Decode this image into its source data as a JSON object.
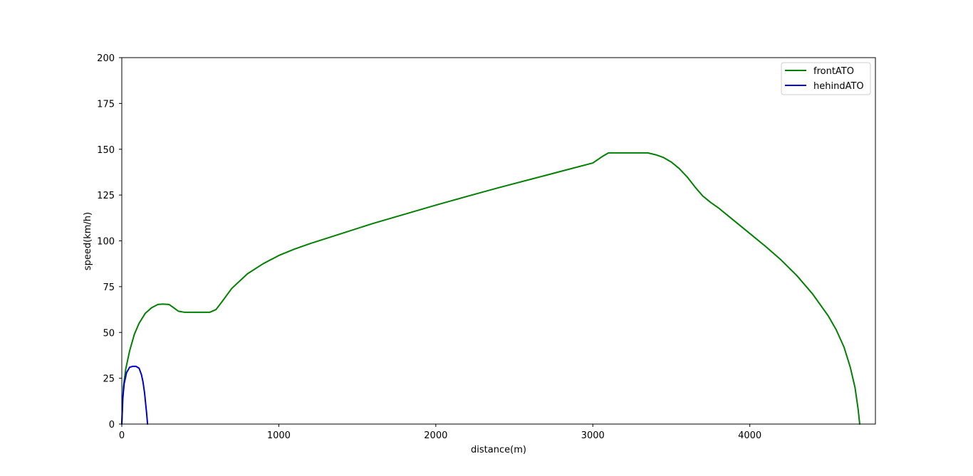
{
  "chart_data": {
    "type": "line",
    "title": "",
    "xlabel": "distance(m)",
    "ylabel": "speed(km/h)",
    "xlim": [
      0,
      4800
    ],
    "ylim": [
      0,
      200
    ],
    "xticks": [
      0,
      1000,
      2000,
      3000,
      4000
    ],
    "yticks": [
      0,
      25,
      50,
      75,
      100,
      125,
      150,
      175,
      200
    ],
    "grid": false,
    "legend_position": "top-right",
    "series": [
      {
        "name": "frontATO",
        "color": "#008000",
        "x": [
          0,
          10,
          25,
          50,
          80,
          110,
          150,
          190,
          230,
          260,
          300,
          330,
          360,
          400,
          450,
          500,
          560,
          600,
          640,
          700,
          800,
          900,
          1000,
          1100,
          1200,
          1400,
          1600,
          1800,
          2000,
          2200,
          2400,
          2600,
          2800,
          3000,
          3060,
          3100,
          3200,
          3300,
          3350,
          3400,
          3450,
          3500,
          3550,
          3600,
          3650,
          3700,
          3750,
          3800,
          3900,
          4000,
          4100,
          4200,
          4300,
          4400,
          4500,
          4550,
          4600,
          4640,
          4670,
          4690,
          4700
        ],
        "y": [
          0,
          20,
          30,
          40,
          49,
          55,
          60.5,
          63.5,
          65.3,
          65.5,
          65.3,
          63.5,
          61.6,
          61,
          61,
          61,
          61,
          62.5,
          67,
          74,
          82,
          87.5,
          92,
          95.5,
          98.5,
          104,
          109.5,
          114.5,
          119.5,
          124.3,
          129,
          133.5,
          138,
          142.5,
          146,
          148,
          148,
          148,
          148,
          147,
          145.5,
          143,
          139.5,
          135,
          129.5,
          124.5,
          121,
          118,
          111,
          104,
          97,
          89.5,
          81,
          71,
          59,
          51.5,
          42,
          31,
          20,
          8,
          0
        ]
      },
      {
        "name": "hehindATO",
        "color": "#0000cc",
        "x": [
          0,
          5,
          15,
          30,
          50,
          70,
          90,
          110,
          125,
          135,
          145,
          152,
          158,
          162,
          164
        ],
        "y": [
          0,
          13,
          22,
          28,
          31,
          31.5,
          31.5,
          30.5,
          27,
          23,
          17,
          11,
          6,
          2,
          0
        ]
      }
    ]
  }
}
